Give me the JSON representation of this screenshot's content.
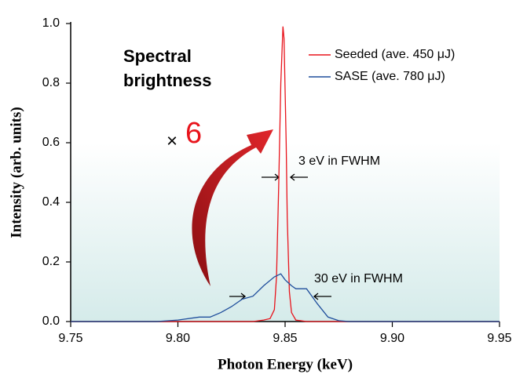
{
  "chart_data": {
    "type": "line",
    "xlabel": "Photon Energy (keV)",
    "ylabel": "Intensity (arb. units)",
    "xlim": [
      9.75,
      9.95
    ],
    "ylim": [
      0,
      1
    ],
    "xticks": [
      9.75,
      {
        "value": 9.8,
        "label": "9.80"
      },
      9.85,
      {
        "value": 9.9,
        "label": "9.90"
      },
      9.95
    ],
    "yticks": [
      {
        "value": 0,
        "label": "0.0"
      },
      0.2,
      0.4,
      0.6,
      0.8,
      {
        "value": 1,
        "label": "1.0"
      }
    ],
    "legend": "upper right",
    "series": [
      {
        "name": "Seeded (ave. 450 μJ)",
        "color": "#e8141c",
        "x": [
          9.75,
          9.835,
          9.84,
          9.843,
          9.845,
          9.846,
          9.847,
          9.848,
          9.849,
          9.8495,
          9.8505,
          9.851,
          9.852,
          9.853,
          9.855,
          9.86,
          9.95
        ],
        "values": [
          0,
          0,
          0.005,
          0.01,
          0.04,
          0.15,
          0.45,
          0.8,
          0.99,
          0.95,
          0.6,
          0.35,
          0.1,
          0.03,
          0.005,
          0,
          0
        ]
      },
      {
        "name": "SASE (ave. 780 μJ)",
        "color": "#1f4e9c",
        "x": [
          9.75,
          9.79,
          9.8,
          9.81,
          9.815,
          9.82,
          9.825,
          9.83,
          9.835,
          9.84,
          9.845,
          9.848,
          9.85,
          9.853,
          9.855,
          9.86,
          9.865,
          9.87,
          9.875,
          9.88,
          9.95
        ],
        "values": [
          0,
          0,
          0.005,
          0.015,
          0.015,
          0.03,
          0.05,
          0.075,
          0.085,
          0.12,
          0.15,
          0.16,
          0.14,
          0.12,
          0.11,
          0.11,
          0.06,
          0.015,
          0.003,
          0,
          0
        ]
      }
    ],
    "annotations": [
      "Spectral",
      "brightness",
      "×",
      "6",
      "3 eV in FWHM",
      "30 eV in FWHM"
    ]
  }
}
